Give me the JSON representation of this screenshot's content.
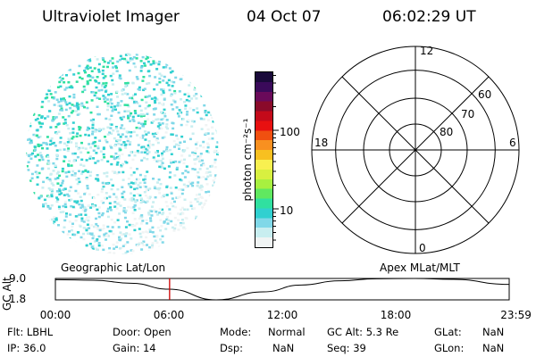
{
  "header": {
    "instrument": "Ultraviolet Imager",
    "date": "04 Oct 07",
    "time": "06:02:29 UT"
  },
  "colorbar": {
    "unit_label": "photon cm⁻²s⁻¹",
    "ticks": [
      "100",
      "10"
    ],
    "colors": [
      "#1a0a3a",
      "#3a0a5a",
      "#6a0a5a",
      "#8a0a2a",
      "#c40a1a",
      "#e81010",
      "#f05010",
      "#f89020",
      "#f8c020",
      "#f8f050",
      "#d8f040",
      "#a8f040",
      "#60e860",
      "#30e0a0",
      "#30d0d0",
      "#80d8e8",
      "#c8eef0",
      "#f0f4f4"
    ],
    "tick_color": "#000000"
  },
  "polar": {
    "mlt_labels": {
      "top": "12",
      "bottom": "0",
      "left": "18",
      "right": "6"
    },
    "lat_labels": [
      "60",
      "70",
      "80"
    ],
    "line_color": "#000000"
  },
  "strip": {
    "left_label": "Geographic Lat/Lon",
    "right_label": "Apex MLat/MLT",
    "y_axis_label": "GC Alt",
    "y_ticks": [
      "9.0",
      "1.8"
    ],
    "x_ticks": [
      "00:00",
      "06:00",
      "12:00",
      "18:00",
      "23:59"
    ],
    "marker_color": "#cc0000",
    "chart_data": {
      "type": "line",
      "x_hours": [
        0,
        2,
        4,
        6,
        8.5,
        11,
        13,
        15,
        17,
        19,
        21,
        23.98
      ],
      "gc_alt": [
        8.6,
        8.4,
        7.4,
        5.4,
        1.8,
        4.5,
        6.8,
        8.2,
        8.9,
        9.0,
        8.7,
        7.0
      ],
      "ylim": [
        1.8,
        9.0
      ],
      "xlim": [
        0,
        24
      ],
      "marker_hour": 6.04
    }
  },
  "status": {
    "filter": "Flt: LBHL",
    "ip": "IP: 36.0",
    "door": "Door: Open",
    "gain": "Gain: 14",
    "mode_label": "Mode:",
    "mode_value": "Normal",
    "dsp_label": "Dsp:",
    "dsp_value": "NaN",
    "gc_alt": "GC Alt: 5.3 Re",
    "seq": "Seq: 39",
    "glat_label": "GLat:",
    "glat_value": "NaN",
    "glon_label": "GLon:",
    "glon_value": "NaN"
  },
  "imager": {
    "palette": [
      "#f0f4f4",
      "#c8eef0",
      "#80d8e8",
      "#30d0d0",
      "#30e0a0"
    ]
  }
}
